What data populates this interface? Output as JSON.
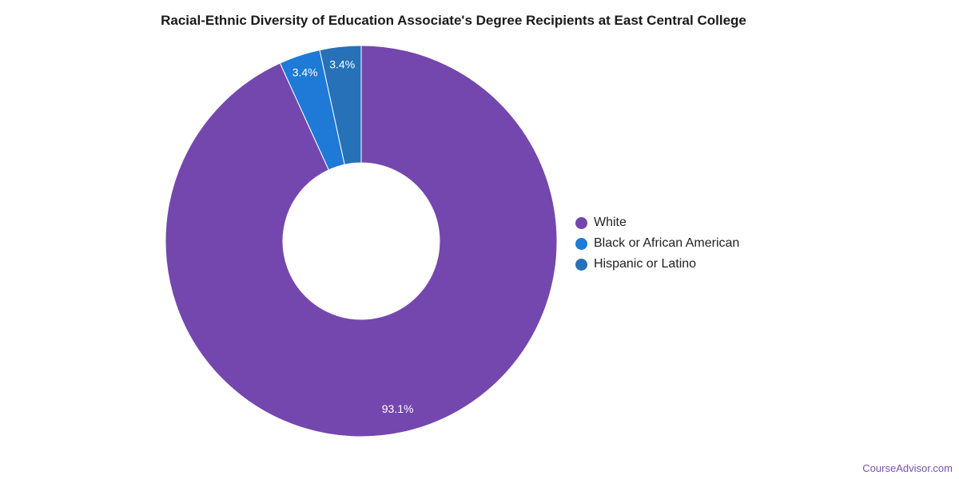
{
  "chart_data": {
    "type": "pie",
    "title": "Racial-Ethnic Diversity of Education Associate's Degree Recipients at East Central College",
    "donut": true,
    "legend_position": "right",
    "slices": [
      {
        "label": "White",
        "value": 93.1,
        "display": "93.1%",
        "color": "#7447ae"
      },
      {
        "label": "Black or African American",
        "value": 3.4,
        "display": "3.4%",
        "color": "#1e7ad6"
      },
      {
        "label": "Hispanic or Latino",
        "value": 3.4,
        "display": "3.4%",
        "color": "#2671b8"
      }
    ]
  },
  "watermark": "CourseAdvisor.com"
}
